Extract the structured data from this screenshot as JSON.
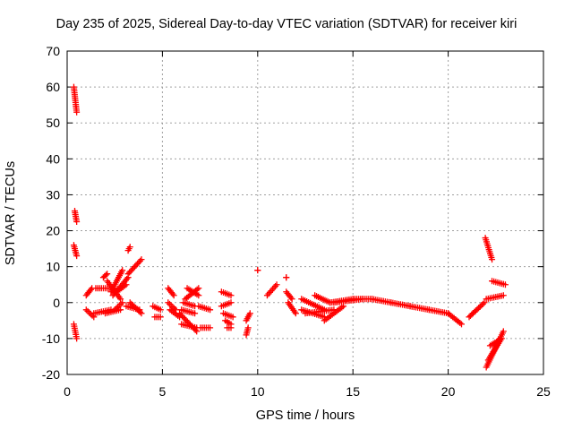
{
  "chart_data": {
    "type": "scatter",
    "title": "Day 235 of 2025, Sidereal Day-to-day VTEC variation (SDTVAR) for receiver kiri",
    "xlabel": "GPS time / hours",
    "ylabel": "SDTVAR / TECUs",
    "xlim": [
      0,
      25
    ],
    "ylim": [
      -20,
      70
    ],
    "xticks": [
      "0",
      "5",
      "10",
      "15",
      "20",
      "25"
    ],
    "yticks": [
      "-20",
      "-10",
      "0",
      "10",
      "20",
      "30",
      "40",
      "50",
      "60",
      "70"
    ],
    "grid": true,
    "marker": "+",
    "color": "#ff0000",
    "segments": [
      {
        "x": [
          0.35,
          0.5
        ],
        "y": [
          60,
          53
        ]
      },
      {
        "x": [
          0.4,
          0.5
        ],
        "y": [
          25.5,
          22.5
        ]
      },
      {
        "x": [
          0.35,
          0.5
        ],
        "y": [
          16,
          13
        ]
      },
      {
        "x": [
          0.35,
          0.5
        ],
        "y": [
          -6,
          -10
        ]
      },
      {
        "x": [
          1.0,
          1.3
        ],
        "y": [
          2,
          4
        ]
      },
      {
        "x": [
          1.0,
          1.4
        ],
        "y": [
          -2,
          -4
        ]
      },
      {
        "x": [
          1.5,
          2.4
        ],
        "y": [
          4,
          4
        ]
      },
      {
        "x": [
          1.4,
          2.3
        ],
        "y": [
          -3,
          -2
        ]
      },
      {
        "x": [
          1.9,
          2.1
        ],
        "y": [
          7,
          8
        ]
      },
      {
        "x": [
          2.1,
          2.8
        ],
        "y": [
          6,
          1
        ]
      },
      {
        "x": [
          2.0,
          2.8
        ],
        "y": [
          -3,
          -2
        ]
      },
      {
        "x": [
          2.3,
          2.9
        ],
        "y": [
          3,
          9
        ]
      },
      {
        "x": [
          2.4,
          3.2
        ],
        "y": [
          2,
          7
        ]
      },
      {
        "x": [
          2.6,
          3.1
        ],
        "y": [
          3,
          5
        ]
      },
      {
        "x": [
          2.5,
          2.9
        ],
        "y": [
          -2,
          0
        ]
      },
      {
        "x": [
          3.2,
          3.3
        ],
        "y": [
          14.5,
          15.5
        ]
      },
      {
        "x": [
          3.2,
          3.9
        ],
        "y": [
          8,
          12
        ]
      },
      {
        "x": [
          3.1,
          3.8
        ],
        "y": [
          -1,
          -2
        ]
      },
      {
        "x": [
          3.3,
          3.9
        ],
        "y": [
          0,
          -3
        ]
      },
      {
        "x": [
          4.5,
          4.9
        ],
        "y": [
          -1,
          -2
        ]
      },
      {
        "x": [
          4.6,
          4.9
        ],
        "y": [
          -4,
          -4
        ]
      },
      {
        "x": [
          5.3,
          5.6
        ],
        "y": [
          4,
          2
        ]
      },
      {
        "x": [
          5.3,
          5.7
        ],
        "y": [
          0,
          -2
        ]
      },
      {
        "x": [
          5.4,
          5.9
        ],
        "y": [
          -2,
          -4
        ]
      },
      {
        "x": [
          5.9,
          6.8
        ],
        "y": [
          -3,
          -8
        ]
      },
      {
        "x": [
          6.0,
          6.8
        ],
        "y": [
          -6,
          -7
        ]
      },
      {
        "x": [
          6.0,
          6.7
        ],
        "y": [
          -2,
          -3
        ]
      },
      {
        "x": [
          6.1,
          6.7
        ],
        "y": [
          0,
          -1
        ]
      },
      {
        "x": [
          6.2,
          6.9
        ],
        "y": [
          1,
          4
        ]
      },
      {
        "x": [
          6.3,
          6.9
        ],
        "y": [
          4,
          2
        ]
      },
      {
        "x": [
          6.9,
          7.5
        ],
        "y": [
          -1,
          -2
        ]
      },
      {
        "x": [
          7.0,
          7.5
        ],
        "y": [
          -7,
          -7
        ]
      },
      {
        "x": [
          8.1,
          8.6
        ],
        "y": [
          3,
          2
        ]
      },
      {
        "x": [
          8.1,
          8.6
        ],
        "y": [
          -1,
          0
        ]
      },
      {
        "x": [
          8.2,
          8.7
        ],
        "y": [
          -3,
          -4
        ]
      },
      {
        "x": [
          8.3,
          8.6
        ],
        "y": [
          -5,
          -6
        ]
      },
      {
        "x": [
          8.4,
          8.6
        ],
        "y": [
          -7,
          -7
        ]
      },
      {
        "x": [
          9.4,
          9.5
        ],
        "y": [
          -9,
          -7
        ]
      },
      {
        "x": [
          9.4,
          9.6
        ],
        "y": [
          -5,
          -3
        ]
      },
      {
        "x": [
          10.0,
          10.0
        ],
        "y": [
          9,
          9
        ]
      },
      {
        "x": [
          10.5,
          11.0
        ],
        "y": [
          2,
          5
        ]
      },
      {
        "x": [
          11.5,
          11.5
        ],
        "y": [
          7,
          7
        ]
      },
      {
        "x": [
          11.5,
          11.8
        ],
        "y": [
          3,
          1
        ]
      },
      {
        "x": [
          11.6,
          12.0
        ],
        "y": [
          0,
          -3
        ]
      },
      {
        "x": [
          12.3,
          13.5
        ],
        "y": [
          1,
          -2
        ]
      },
      {
        "x": [
          12.3,
          13.5
        ],
        "y": [
          -2,
          -4
        ]
      },
      {
        "x": [
          12.5,
          14.0
        ],
        "y": [
          -3,
          -2
        ]
      },
      {
        "x": [
          13.0,
          13.8
        ],
        "y": [
          2,
          0
        ]
      },
      {
        "x": [
          13.5,
          14.5
        ],
        "y": [
          -5,
          -1
        ]
      },
      {
        "x": [
          13.8,
          15.0
        ],
        "y": [
          0,
          1
        ]
      },
      {
        "x": [
          14.0,
          15.5
        ],
        "y": [
          0,
          1
        ]
      },
      {
        "x": [
          15.0,
          16.0
        ],
        "y": [
          1,
          1
        ]
      },
      {
        "x": [
          16.0,
          17.0
        ],
        "y": [
          1,
          0
        ]
      },
      {
        "x": [
          17.0,
          18.0
        ],
        "y": [
          0,
          -1
        ]
      },
      {
        "x": [
          18.0,
          19.0
        ],
        "y": [
          -1,
          -2
        ]
      },
      {
        "x": [
          19.0,
          20.0
        ],
        "y": [
          -2,
          -3
        ]
      },
      {
        "x": [
          20.0,
          20.7
        ],
        "y": [
          -3,
          -6
        ]
      },
      {
        "x": [
          21.1,
          21.3
        ],
        "y": [
          -4,
          -3
        ]
      },
      {
        "x": [
          21.3,
          21.9
        ],
        "y": [
          -3,
          0
        ]
      },
      {
        "x": [
          21.95,
          22.3
        ],
        "y": [
          18,
          12
        ]
      },
      {
        "x": [
          22.3,
          23.0
        ],
        "y": [
          6,
          5
        ]
      },
      {
        "x": [
          22.0,
          22.9
        ],
        "y": [
          1,
          2
        ]
      },
      {
        "x": [
          22.0,
          22.9
        ],
        "y": [
          -18,
          -8
        ]
      },
      {
        "x": [
          22.1,
          22.8
        ],
        "y": [
          -16,
          -10
        ]
      },
      {
        "x": [
          22.2,
          22.8
        ],
        "y": [
          -12,
          -10
        ]
      }
    ]
  }
}
